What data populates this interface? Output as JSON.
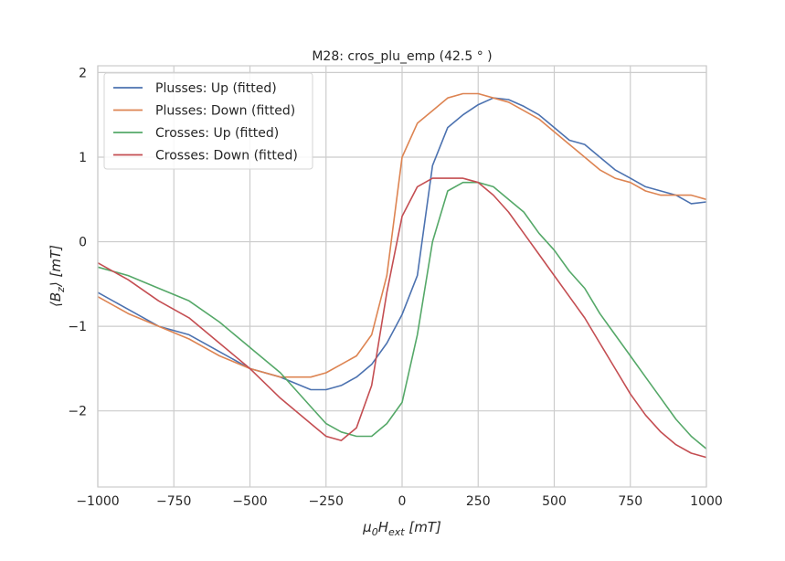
{
  "chart_data": {
    "type": "line",
    "title": "M28: cros_plu_emp (42.5 ° )",
    "xlabel": {
      "pre": "μ",
      "sub1": "0",
      "mid": "H",
      "sub2": "ext",
      "post": " [mT]"
    },
    "ylabel": {
      "pre": "⟨B",
      "sub": "z",
      "post": "⟩ [mT]"
    },
    "xlim": [
      -1000,
      1000
    ],
    "ylim": [
      -2.9,
      2.08
    ],
    "xticks": [
      -1000,
      -750,
      -500,
      -250,
      0,
      250,
      500,
      750,
      1000
    ],
    "xtick_labels": [
      "−1000",
      "−750",
      "−500",
      "−250",
      "0",
      "250",
      "500",
      "750",
      "1000"
    ],
    "yticks": [
      -2,
      -1,
      0,
      1,
      2
    ],
    "ytick_labels": [
      "−2",
      "−1",
      "0",
      "1",
      "2"
    ],
    "grid": true,
    "legend_position": "top-left",
    "series": [
      {
        "name": "Plusses: Up (fitted)",
        "color": "#4c72b0",
        "points": [
          [
            -1000,
            -0.6
          ],
          [
            -900,
            -0.8
          ],
          [
            -800,
            -1.0
          ],
          [
            -700,
            -1.1
          ],
          [
            -600,
            -1.3
          ],
          [
            -500,
            -1.5
          ],
          [
            -400,
            -1.6
          ],
          [
            -300,
            -1.75
          ],
          [
            -250,
            -1.75
          ],
          [
            -200,
            -1.7
          ],
          [
            -150,
            -1.6
          ],
          [
            -100,
            -1.45
          ],
          [
            -50,
            -1.2
          ],
          [
            0,
            -0.86
          ],
          [
            50,
            -0.4
          ],
          [
            100,
            0.9
          ],
          [
            150,
            1.35
          ],
          [
            200,
            1.5
          ],
          [
            250,
            1.62
          ],
          [
            300,
            1.7
          ],
          [
            350,
            1.68
          ],
          [
            400,
            1.6
          ],
          [
            450,
            1.5
          ],
          [
            500,
            1.35
          ],
          [
            550,
            1.2
          ],
          [
            600,
            1.15
          ],
          [
            650,
            1.0
          ],
          [
            700,
            0.85
          ],
          [
            750,
            0.75
          ],
          [
            800,
            0.65
          ],
          [
            850,
            0.6
          ],
          [
            900,
            0.55
          ],
          [
            950,
            0.45
          ],
          [
            1000,
            0.47
          ]
        ]
      },
      {
        "name": "Plusses: Down (fitted)",
        "color": "#dd8452",
        "points": [
          [
            -1000,
            -0.65
          ],
          [
            -900,
            -0.85
          ],
          [
            -800,
            -1.0
          ],
          [
            -700,
            -1.15
          ],
          [
            -600,
            -1.35
          ],
          [
            -500,
            -1.5
          ],
          [
            -400,
            -1.6
          ],
          [
            -350,
            -1.6
          ],
          [
            -300,
            -1.6
          ],
          [
            -250,
            -1.55
          ],
          [
            -200,
            -1.45
          ],
          [
            -150,
            -1.35
          ],
          [
            -100,
            -1.1
          ],
          [
            -50,
            -0.4
          ],
          [
            0,
            1.0
          ],
          [
            50,
            1.4
          ],
          [
            100,
            1.55
          ],
          [
            150,
            1.7
          ],
          [
            200,
            1.75
          ],
          [
            250,
            1.75
          ],
          [
            300,
            1.7
          ],
          [
            350,
            1.65
          ],
          [
            400,
            1.55
          ],
          [
            450,
            1.45
          ],
          [
            500,
            1.3
          ],
          [
            550,
            1.15
          ],
          [
            600,
            1.0
          ],
          [
            650,
            0.85
          ],
          [
            700,
            0.75
          ],
          [
            750,
            0.7
          ],
          [
            800,
            0.6
          ],
          [
            850,
            0.55
          ],
          [
            900,
            0.55
          ],
          [
            950,
            0.55
          ],
          [
            1000,
            0.5
          ]
        ]
      },
      {
        "name": "Crosses: Up (fitted)",
        "color": "#55a868",
        "points": [
          [
            -1000,
            -0.3
          ],
          [
            -900,
            -0.4
          ],
          [
            -800,
            -0.55
          ],
          [
            -700,
            -0.7
          ],
          [
            -600,
            -0.95
          ],
          [
            -500,
            -1.25
          ],
          [
            -400,
            -1.55
          ],
          [
            -300,
            -1.95
          ],
          [
            -250,
            -2.15
          ],
          [
            -200,
            -2.25
          ],
          [
            -150,
            -2.3
          ],
          [
            -100,
            -2.3
          ],
          [
            -50,
            -2.15
          ],
          [
            0,
            -1.9
          ],
          [
            50,
            -1.1
          ],
          [
            100,
            0.0
          ],
          [
            150,
            0.6
          ],
          [
            200,
            0.7
          ],
          [
            250,
            0.7
          ],
          [
            300,
            0.65
          ],
          [
            350,
            0.5
          ],
          [
            400,
            0.35
          ],
          [
            450,
            0.1
          ],
          [
            500,
            -0.1
          ],
          [
            550,
            -0.35
          ],
          [
            600,
            -0.55
          ],
          [
            650,
            -0.85
          ],
          [
            700,
            -1.1
          ],
          [
            750,
            -1.35
          ],
          [
            800,
            -1.6
          ],
          [
            850,
            -1.85
          ],
          [
            900,
            -2.1
          ],
          [
            950,
            -2.3
          ],
          [
            1000,
            -2.45
          ]
        ]
      },
      {
        "name": "Crosses: Down (fitted)",
        "color": "#c44e52",
        "points": [
          [
            -1000,
            -0.25
          ],
          [
            -900,
            -0.45
          ],
          [
            -800,
            -0.7
          ],
          [
            -700,
            -0.9
          ],
          [
            -600,
            -1.2
          ],
          [
            -500,
            -1.5
          ],
          [
            -400,
            -1.85
          ],
          [
            -300,
            -2.15
          ],
          [
            -250,
            -2.3
          ],
          [
            -200,
            -2.35
          ],
          [
            -150,
            -2.2
          ],
          [
            -100,
            -1.7
          ],
          [
            -50,
            -0.6
          ],
          [
            0,
            0.3
          ],
          [
            50,
            0.65
          ],
          [
            100,
            0.75
          ],
          [
            150,
            0.75
          ],
          [
            200,
            0.75
          ],
          [
            250,
            0.7
          ],
          [
            300,
            0.55
          ],
          [
            350,
            0.35
          ],
          [
            400,
            0.1
          ],
          [
            450,
            -0.15
          ],
          [
            500,
            -0.4
          ],
          [
            550,
            -0.65
          ],
          [
            600,
            -0.9
          ],
          [
            650,
            -1.2
          ],
          [
            700,
            -1.5
          ],
          [
            750,
            -1.8
          ],
          [
            800,
            -2.05
          ],
          [
            850,
            -2.25
          ],
          [
            900,
            -2.4
          ],
          [
            950,
            -2.5
          ],
          [
            1000,
            -2.55
          ]
        ]
      }
    ]
  }
}
